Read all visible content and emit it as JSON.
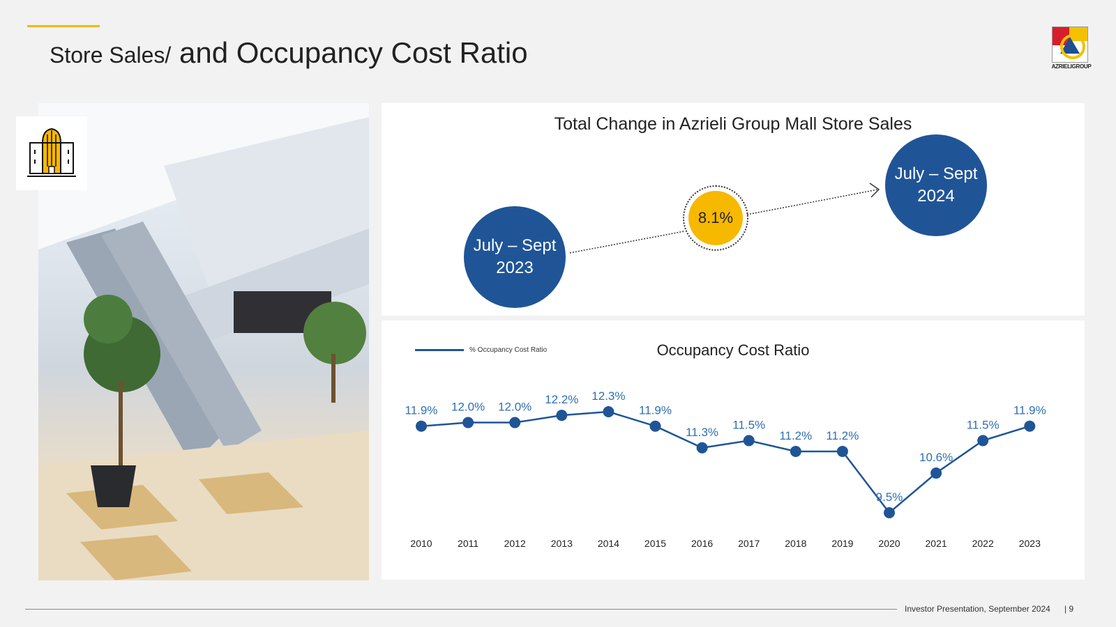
{
  "header": {
    "title_part1": "Store Sales/",
    "title_part2": " and Occupancy Cost Ratio",
    "logo_text": "AZRIELIGROUP",
    "accent_color": "#f5b800"
  },
  "icon": {
    "name": "building-icon"
  },
  "top_panel": {
    "title": "Total Change in Azrieli Group Mall Store Sales",
    "from_period_line1": "July – Sept",
    "from_period_line2": "2023",
    "to_period_line1": "July – Sept",
    "to_period_line2": "2024",
    "change_value": "8.1%",
    "circle_color": "#1f5597",
    "highlight_color": "#f7b800"
  },
  "chart_data": {
    "type": "line",
    "title": "Occupancy Cost Ratio",
    "series": [
      {
        "name": "% Occupancy Cost Ratio",
        "color": "#1f5597",
        "values": [
          11.9,
          12.0,
          12.0,
          12.2,
          12.3,
          11.9,
          11.3,
          11.5,
          11.2,
          11.2,
          9.5,
          10.6,
          11.5,
          11.9
        ]
      }
    ],
    "categories": [
      "2010",
      "2011",
      "2012",
      "2013",
      "2014",
      "2015",
      "2016",
      "2017",
      "2018",
      "2019",
      "2020",
      "2021",
      "2022",
      "2023"
    ],
    "data_labels": [
      "11.9%",
      "12.0%",
      "12.0%",
      "12.2%",
      "12.3%",
      "11.9%",
      "11.3%",
      "11.5%",
      "11.2%",
      "11.2%",
      "9.5%",
      "10.6%",
      "11.5%",
      "11.9%"
    ],
    "ylim": [
      9.0,
      12.5
    ],
    "grid": false,
    "legend": "top-left"
  },
  "footer": {
    "text": "Investor Presentation, September 2024",
    "page": "| 9"
  }
}
